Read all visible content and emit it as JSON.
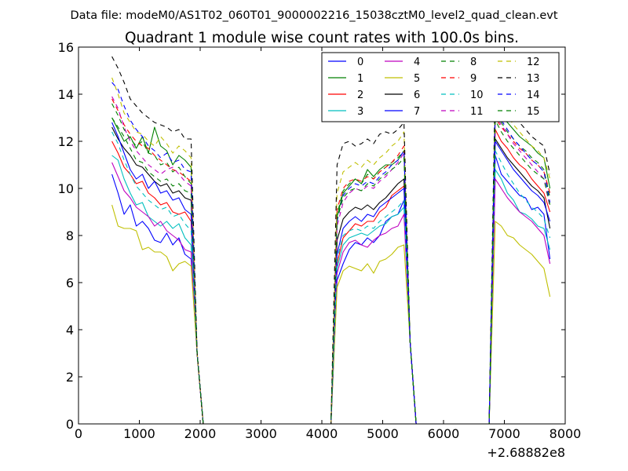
{
  "chart_data": {
    "type": "line",
    "suptitle": "Data file: modeM0/AS1T02_060T01_9000002216_15038cztM0_level2_quad_clean.evt",
    "title": "Quadrant 1 module wise count rates with 100.0s bins.",
    "xlabel": "",
    "ylabel": "",
    "x_offset_label": "+2.68882e8",
    "xlim": [
      0,
      8000
    ],
    "ylim": [
      0,
      16
    ],
    "x_ticks": [
      0,
      1000,
      2000,
      3000,
      4000,
      5000,
      6000,
      7000,
      8000
    ],
    "x_tick_labels": [
      "0",
      "1000",
      "2000",
      "3000",
      "4000",
      "5000",
      "6000",
      "7000",
      "8000"
    ],
    "y_ticks": [
      0,
      2,
      4,
      6,
      8,
      10,
      12,
      14,
      16
    ],
    "y_tick_labels": [
      "0",
      "2",
      "4",
      "6",
      "8",
      "10",
      "12",
      "14",
      "16"
    ],
    "grid": false,
    "legend_position": "top-right",
    "legend_columns": 4,
    "segments": [
      {
        "name": "segment-1",
        "x": [
          550,
          650,
          750,
          850,
          950,
          1050,
          1150,
          1250,
          1350,
          1450,
          1550,
          1650,
          1750,
          1850
        ]
      },
      {
        "name": "segment-2",
        "x": [
          4250,
          4350,
          4450,
          4550,
          4650,
          4750,
          4850,
          4950,
          5050,
          5150,
          5250,
          5350
        ]
      },
      {
        "name": "segment-3",
        "x": [
          6850,
          6950,
          7050,
          7150,
          7250,
          7350,
          7450,
          7550,
          7650,
          7750
        ]
      }
    ],
    "gap_x": [
      1950,
      2050,
      4050,
      4150,
      5450,
      5550,
      6650,
      6750
    ],
    "gap_y": [
      3.0,
      0,
      0,
      0,
      3.5,
      0,
      0,
      0
    ],
    "series": [
      {
        "name": "0",
        "color": "#0000ff",
        "dash": "solid",
        "values": [
          [
            10.6,
            9.8,
            8.9,
            9.3,
            8.4,
            8.6,
            8.3,
            7.8,
            7.7,
            8.1,
            7.6,
            7.9,
            7.2,
            7.0
          ],
          [
            6.1,
            6.8,
            7.4,
            7.7,
            7.6,
            7.9,
            7.7,
            8.0,
            8.6,
            8.8,
            8.9,
            9.5
          ],
          [
            11.4,
            10.6,
            10.3,
            10.0,
            9.7,
            9.6,
            9.1,
            9.2,
            8.9,
            7.0
          ]
        ]
      },
      {
        "name": "1",
        "color": "#008000",
        "dash": "solid",
        "values": [
          [
            13.0,
            12.5,
            12.0,
            12.2,
            11.7,
            12.2,
            11.5,
            12.6,
            11.8,
            11.6,
            11.0,
            11.4,
            11.2,
            10.9
          ],
          [
            8.8,
            9.8,
            10.1,
            10.4,
            10.2,
            10.8,
            10.5,
            10.8,
            11.0,
            11.0,
            11.2,
            11.6
          ],
          [
            13.5,
            13.0,
            12.8,
            12.5,
            12.2,
            12.0,
            11.8,
            11.5,
            11.3,
            10.0
          ]
        ]
      },
      {
        "name": "2",
        "color": "#ff0000",
        "dash": "solid",
        "values": [
          [
            12.0,
            11.5,
            10.9,
            10.6,
            10.2,
            10.3,
            9.8,
            9.6,
            9.3,
            9.4,
            9.0,
            8.9,
            9.0,
            8.6
          ],
          [
            6.8,
            7.9,
            8.2,
            8.5,
            8.4,
            8.6,
            8.6,
            9.0,
            9.2,
            9.7,
            9.9,
            10.1
          ],
          [
            12.5,
            12.0,
            11.7,
            11.3,
            11.0,
            10.8,
            10.4,
            10.1,
            9.8,
            9.0
          ]
        ]
      },
      {
        "name": "3",
        "color": "#00bfbf",
        "dash": "solid",
        "values": [
          [
            11.4,
            11.2,
            10.4,
            9.8,
            9.3,
            9.4,
            8.8,
            8.6,
            8.4,
            8.6,
            8.3,
            8.5,
            7.9,
            7.6
          ],
          [
            6.6,
            7.6,
            7.9,
            8.0,
            8.1,
            8.0,
            8.2,
            8.4,
            8.5,
            8.8,
            8.9,
            9.2
          ],
          [
            10.8,
            10.4,
            9.8,
            9.5,
            9.0,
            8.9,
            8.7,
            8.4,
            8.3,
            7.4
          ]
        ]
      },
      {
        "name": "4",
        "color": "#bf00bf",
        "dash": "solid",
        "values": [
          [
            11.1,
            10.5,
            9.9,
            9.6,
            9.2,
            9.0,
            8.8,
            8.4,
            8.6,
            8.2,
            8.0,
            7.8,
            7.4,
            7.3
          ],
          [
            6.4,
            7.3,
            7.7,
            7.8,
            7.6,
            7.5,
            7.8,
            8.0,
            8.1,
            8.3,
            8.4,
            8.9
          ],
          [
            10.4,
            10.0,
            9.6,
            9.3,
            9.0,
            8.8,
            8.6,
            8.3,
            8.0,
            6.8
          ]
        ]
      },
      {
        "name": "5",
        "color": "#bfbf00",
        "dash": "solid",
        "values": [
          [
            9.3,
            8.4,
            8.3,
            8.3,
            8.2,
            7.4,
            7.5,
            7.3,
            7.3,
            7.1,
            6.5,
            6.8,
            6.9,
            6.7
          ],
          [
            5.8,
            6.5,
            6.7,
            6.6,
            6.5,
            6.8,
            6.4,
            6.9,
            7.0,
            7.2,
            7.5,
            7.6
          ],
          [
            8.6,
            8.4,
            8.0,
            7.9,
            7.6,
            7.4,
            7.2,
            6.9,
            6.6,
            5.4
          ]
        ]
      },
      {
        "name": "6",
        "color": "#000000",
        "dash": "solid",
        "values": [
          [
            12.6,
            12.1,
            11.7,
            11.4,
            11.0,
            10.9,
            10.6,
            10.3,
            10.1,
            10.2,
            9.8,
            9.9,
            9.6,
            9.5
          ],
          [
            7.8,
            8.7,
            9.0,
            9.2,
            9.1,
            9.3,
            9.1,
            9.4,
            9.6,
            9.9,
            10.2,
            10.4
          ],
          [
            12.1,
            11.7,
            11.3,
            11.0,
            10.7,
            10.4,
            10.1,
            9.9,
            9.6,
            8.3
          ]
        ]
      },
      {
        "name": "7",
        "color": "#0000ff",
        "dash": "solid",
        "values": [
          [
            12.8,
            12.2,
            11.5,
            10.8,
            10.4,
            10.6,
            10.0,
            10.3,
            9.8,
            9.9,
            9.5,
            9.6,
            9.1,
            8.9
          ],
          [
            7.2,
            8.3,
            8.6,
            8.8,
            8.6,
            8.9,
            8.8,
            9.2,
            9.4,
            9.6,
            9.8,
            10.0
          ],
          [
            12.0,
            11.6,
            11.2,
            10.8,
            10.5,
            10.2,
            9.9,
            9.7,
            9.4,
            8.6
          ]
        ]
      },
      {
        "name": "8",
        "color": "#008000",
        "dash": "dashed",
        "values": [
          [
            13.6,
            13.1,
            12.5,
            12.1,
            11.8,
            12.0,
            11.5,
            11.4,
            11.0,
            11.1,
            10.7,
            10.9,
            10.5,
            10.2
          ],
          [
            8.9,
            9.9,
            10.2,
            10.4,
            10.2,
            10.6,
            10.4,
            10.7,
            10.9,
            11.1,
            11.3,
            11.6
          ],
          [
            13.3,
            12.8,
            12.4,
            12.1,
            11.8,
            11.6,
            11.3,
            11.1,
            10.8,
            9.6
          ]
        ]
      },
      {
        "name": "9",
        "color": "#ff0000",
        "dash": "dashed",
        "values": [
          [
            13.8,
            13.3,
            12.7,
            12.3,
            12.0,
            11.8,
            11.7,
            11.4,
            11.2,
            11.0,
            10.8,
            10.7,
            10.5,
            10.3
          ],
          [
            9.1,
            10.0,
            10.3,
            10.4,
            10.3,
            10.5,
            10.4,
            10.7,
            10.9,
            11.1,
            11.4,
            11.8
          ],
          [
            13.0,
            12.6,
            12.3,
            12.0,
            11.7,
            11.5,
            11.2,
            11.0,
            10.7,
            9.8
          ]
        ]
      },
      {
        "name": "10",
        "color": "#00bfbf",
        "dash": "dashed",
        "values": [
          [
            12.4,
            11.9,
            11.2,
            10.6,
            10.1,
            9.8,
            9.5,
            9.3,
            9.1,
            9.2,
            8.8,
            8.9,
            8.5,
            8.2
          ],
          [
            7.0,
            8.0,
            8.2,
            8.3,
            8.2,
            8.4,
            8.3,
            8.6,
            8.8,
            9.0,
            9.2,
            9.5
          ],
          [
            11.6,
            11.1,
            10.6,
            10.2,
            9.8,
            9.5,
            9.2,
            9.0,
            8.7,
            7.9
          ]
        ]
      },
      {
        "name": "11",
        "color": "#bf00bf",
        "dash": "dashed",
        "values": [
          [
            13.9,
            13.4,
            12.6,
            12.0,
            11.6,
            11.3,
            11.0,
            10.8,
            10.6,
            10.8,
            10.9,
            10.6,
            10.3,
            10.1
          ],
          [
            8.4,
            9.4,
            9.8,
            10.0,
            9.9,
            10.1,
            10.0,
            10.3,
            10.5,
            10.8,
            11.1,
            11.5
          ],
          [
            13.1,
            12.7,
            12.3,
            11.9,
            11.6,
            11.3,
            11.0,
            10.7,
            10.4,
            9.2
          ]
        ]
      },
      {
        "name": "12",
        "color": "#bfbf00",
        "dash": "dashed",
        "values": [
          [
            14.7,
            14.0,
            13.2,
            12.8,
            12.4,
            12.3,
            12.0,
            11.8,
            12.2,
            11.9,
            11.5,
            11.8,
            11.6,
            11.3
          ],
          [
            9.8,
            10.7,
            10.9,
            11.1,
            10.9,
            11.2,
            11.0,
            11.3,
            11.5,
            11.8,
            12.0,
            12.4
          ],
          [
            14.2,
            13.6,
            13.1,
            12.7,
            12.4,
            12.1,
            11.8,
            11.6,
            11.3,
            10.4
          ]
        ]
      },
      {
        "name": "13",
        "color": "#000000",
        "dash": "dashed",
        "values": [
          [
            15.6,
            15.1,
            14.5,
            13.8,
            13.5,
            13.2,
            13.0,
            12.8,
            12.7,
            12.6,
            12.4,
            12.5,
            12.1,
            12.1
          ],
          [
            11.0,
            11.9,
            12.0,
            11.8,
            11.9,
            12.1,
            11.9,
            12.3,
            12.4,
            12.3,
            12.5,
            12.8
          ],
          [
            14.6,
            14.0,
            13.5,
            13.1,
            12.8,
            12.5,
            12.2,
            12.0,
            11.8,
            10.6
          ]
        ]
      },
      {
        "name": "14",
        "color": "#0000ff",
        "dash": "dashed",
        "values": [
          [
            14.5,
            14.2,
            13.5,
            12.9,
            12.5,
            12.2,
            11.8,
            11.6,
            11.3,
            11.5,
            11.1,
            11.2,
            10.8,
            10.7
          ],
          [
            8.6,
            9.7,
            10.0,
            10.2,
            10.1,
            10.3,
            10.2,
            10.5,
            10.7,
            11.0,
            11.2,
            11.6
          ],
          [
            13.4,
            12.9,
            12.5,
            12.1,
            11.8,
            11.5,
            11.2,
            11.0,
            10.7,
            9.4
          ]
        ]
      },
      {
        "name": "15",
        "color": "#008000",
        "dash": "dashed",
        "values": [
          [
            13.0,
            12.6,
            12.2,
            11.7,
            11.2,
            11.1,
            10.7,
            10.5,
            10.3,
            10.4,
            10.1,
            10.2,
            9.9,
            9.8
          ],
          [
            8.7,
            9.6,
            9.9,
            10.0,
            9.9,
            10.2,
            10.1,
            10.4,
            10.6,
            10.8,
            11.0,
            11.3
          ],
          [
            12.9,
            12.4,
            12.0,
            11.7,
            11.4,
            11.1,
            10.8,
            10.6,
            10.4,
            9.3
          ]
        ]
      }
    ]
  }
}
